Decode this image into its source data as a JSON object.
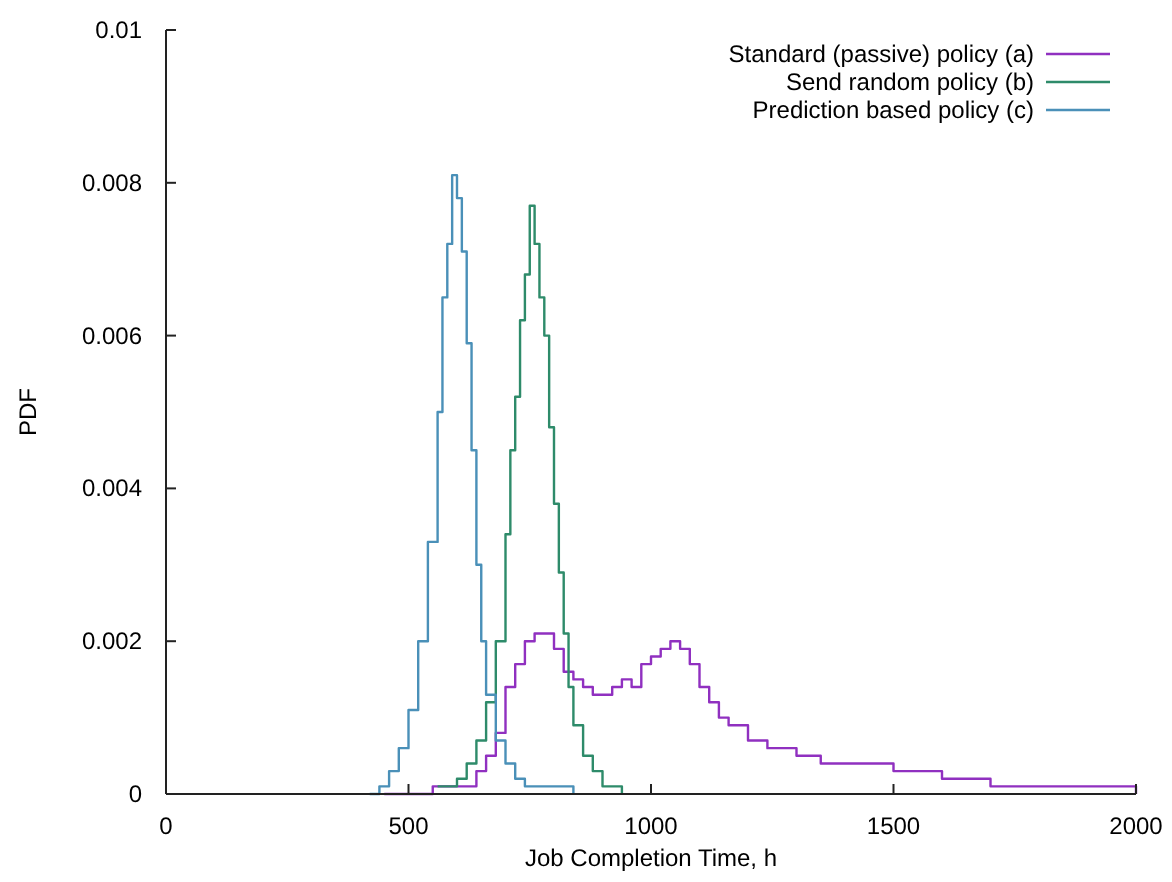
{
  "chart_data": {
    "type": "step",
    "xlabel": "Job Completion Time, h",
    "ylabel": "PDF",
    "xlim": [
      0,
      2000
    ],
    "ylim": [
      0,
      0.01
    ],
    "xticks": [
      0,
      500,
      1000,
      1500,
      2000
    ],
    "yticks": [
      0,
      0.002,
      0.004,
      0.006,
      0.008,
      0.01
    ],
    "grid": false,
    "legend": "top right",
    "line_style": "solid",
    "series": [
      {
        "name": "Standard (passive) policy (a)",
        "color": "#9030c0",
        "x": [
          450,
          550,
          600,
          640,
          660,
          680,
          700,
          720,
          740,
          760,
          780,
          800,
          820,
          840,
          860,
          880,
          900,
          920,
          940,
          960,
          980,
          1000,
          1020,
          1040,
          1060,
          1080,
          1100,
          1120,
          1140,
          1160,
          1200,
          1240,
          1300,
          1350,
          1400,
          1450,
          1500,
          1550,
          1600,
          1700,
          1800,
          2000
        ],
        "values": [
          0,
          0.0001,
          0.0001,
          0.0003,
          0.0005,
          0.0008,
          0.0014,
          0.0017,
          0.002,
          0.0021,
          0.0021,
          0.0019,
          0.0016,
          0.0015,
          0.0014,
          0.0013,
          0.0013,
          0.0014,
          0.0015,
          0.0014,
          0.0017,
          0.0018,
          0.0019,
          0.002,
          0.0019,
          0.0017,
          0.0014,
          0.0012,
          0.001,
          0.0009,
          0.0007,
          0.0006,
          0.0005,
          0.0004,
          0.0004,
          0.0004,
          0.0003,
          0.0003,
          0.0002,
          0.0001,
          0.0001,
          0
        ]
      },
      {
        "name": "Send random policy (b)",
        "color": "#2e8b6a",
        "x": [
          560,
          600,
          620,
          640,
          660,
          680,
          700,
          710,
          720,
          730,
          740,
          750,
          760,
          770,
          780,
          790,
          800,
          810,
          820,
          830,
          840,
          860,
          880,
          900,
          940
        ],
        "values": [
          0.0001,
          0.0002,
          0.0004,
          0.0007,
          0.0012,
          0.002,
          0.0034,
          0.0045,
          0.0052,
          0.0062,
          0.0068,
          0.0077,
          0.0072,
          0.0065,
          0.006,
          0.0048,
          0.0038,
          0.0029,
          0.0021,
          0.0014,
          0.0009,
          0.0005,
          0.0003,
          0.0001,
          0
        ]
      },
      {
        "name": "Prediction based policy (c)",
        "color": "#4a90b8",
        "x": [
          420,
          440,
          460,
          480,
          500,
          520,
          540,
          560,
          570,
          580,
          590,
          600,
          610,
          620,
          630,
          640,
          650,
          660,
          680,
          700,
          720,
          740,
          800,
          840
        ],
        "values": [
          0,
          0.0001,
          0.0003,
          0.0006,
          0.0011,
          0.002,
          0.0033,
          0.005,
          0.0065,
          0.0072,
          0.0081,
          0.0078,
          0.0071,
          0.0059,
          0.0045,
          0.003,
          0.002,
          0.0013,
          0.0007,
          0.0004,
          0.0002,
          0.0001,
          0.0001,
          0
        ]
      }
    ]
  }
}
